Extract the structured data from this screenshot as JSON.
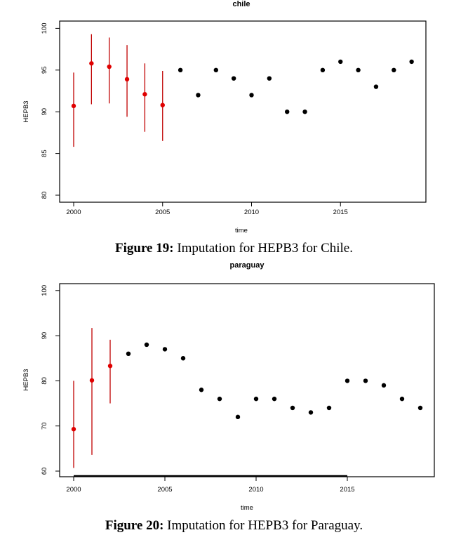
{
  "chart_data": [
    {
      "type": "scatter",
      "title": "chile",
      "xlabel": "time",
      "ylabel": "HEPB3",
      "xlim": [
        1999.6,
        2019.8
      ],
      "ylim": [
        79.2,
        100.8
      ],
      "xticks": [
        2000,
        2005,
        2010,
        2015
      ],
      "yticks": [
        80,
        85,
        90,
        95,
        100
      ],
      "grid": false,
      "colors": {
        "imputed": "#e00000",
        "interval": "#c00000",
        "observed": "#000000"
      },
      "imputed": {
        "x": [
          2000,
          2001,
          2002,
          2003,
          2004,
          2005
        ],
        "y": [
          90.7,
          95.8,
          95.4,
          93.9,
          92.1,
          90.8
        ],
        "lower": [
          85.8,
          90.9,
          91.0,
          89.4,
          87.6,
          86.5
        ],
        "upper": [
          94.7,
          99.3,
          98.9,
          98.0,
          95.8,
          94.9
        ]
      },
      "observed": {
        "x": [
          2006,
          2007,
          2008,
          2009,
          2010,
          2011,
          2012,
          2013,
          2014,
          2015,
          2016,
          2017,
          2018,
          2019
        ],
        "y": [
          95,
          92,
          95,
          94,
          92,
          94,
          90,
          90,
          95,
          96,
          95,
          93,
          95,
          96
        ]
      }
    },
    {
      "type": "scatter",
      "title": "paraguay",
      "xlabel": "time",
      "ylabel": "HEPB3",
      "xlim": [
        1999.6,
        2019.8
      ],
      "ylim": [
        58.8,
        101.5
      ],
      "xticks": [
        2000,
        2005,
        2010,
        2015
      ],
      "yticks": [
        60,
        70,
        80,
        90,
        100
      ],
      "grid": false,
      "colors": {
        "imputed": "#e00000",
        "interval": "#c00000",
        "observed": "#000000"
      },
      "imputed": {
        "x": [
          2000,
          2001,
          2002
        ],
        "y": [
          69.3,
          80.1,
          83.3
        ],
        "lower": [
          60.7,
          63.6,
          75.0
        ],
        "upper": [
          80.0,
          91.7,
          89.1
        ]
      },
      "observed": {
        "x": [
          2003,
          2004,
          2005,
          2006,
          2007,
          2008,
          2009,
          2010,
          2011,
          2012,
          2013,
          2014,
          2015,
          2016,
          2017,
          2018,
          2019
        ],
        "y": [
          86,
          88,
          87,
          85,
          78,
          76,
          72,
          76,
          76,
          74,
          73,
          74,
          80,
          80,
          79,
          76,
          74
        ]
      }
    }
  ],
  "captions": [
    {
      "label": "Figure 19:",
      "text": " Imputation for HEPB3 for Chile."
    },
    {
      "label": "Figure 20:",
      "text": " Imputation for HEPB3 for Paraguay."
    }
  ]
}
